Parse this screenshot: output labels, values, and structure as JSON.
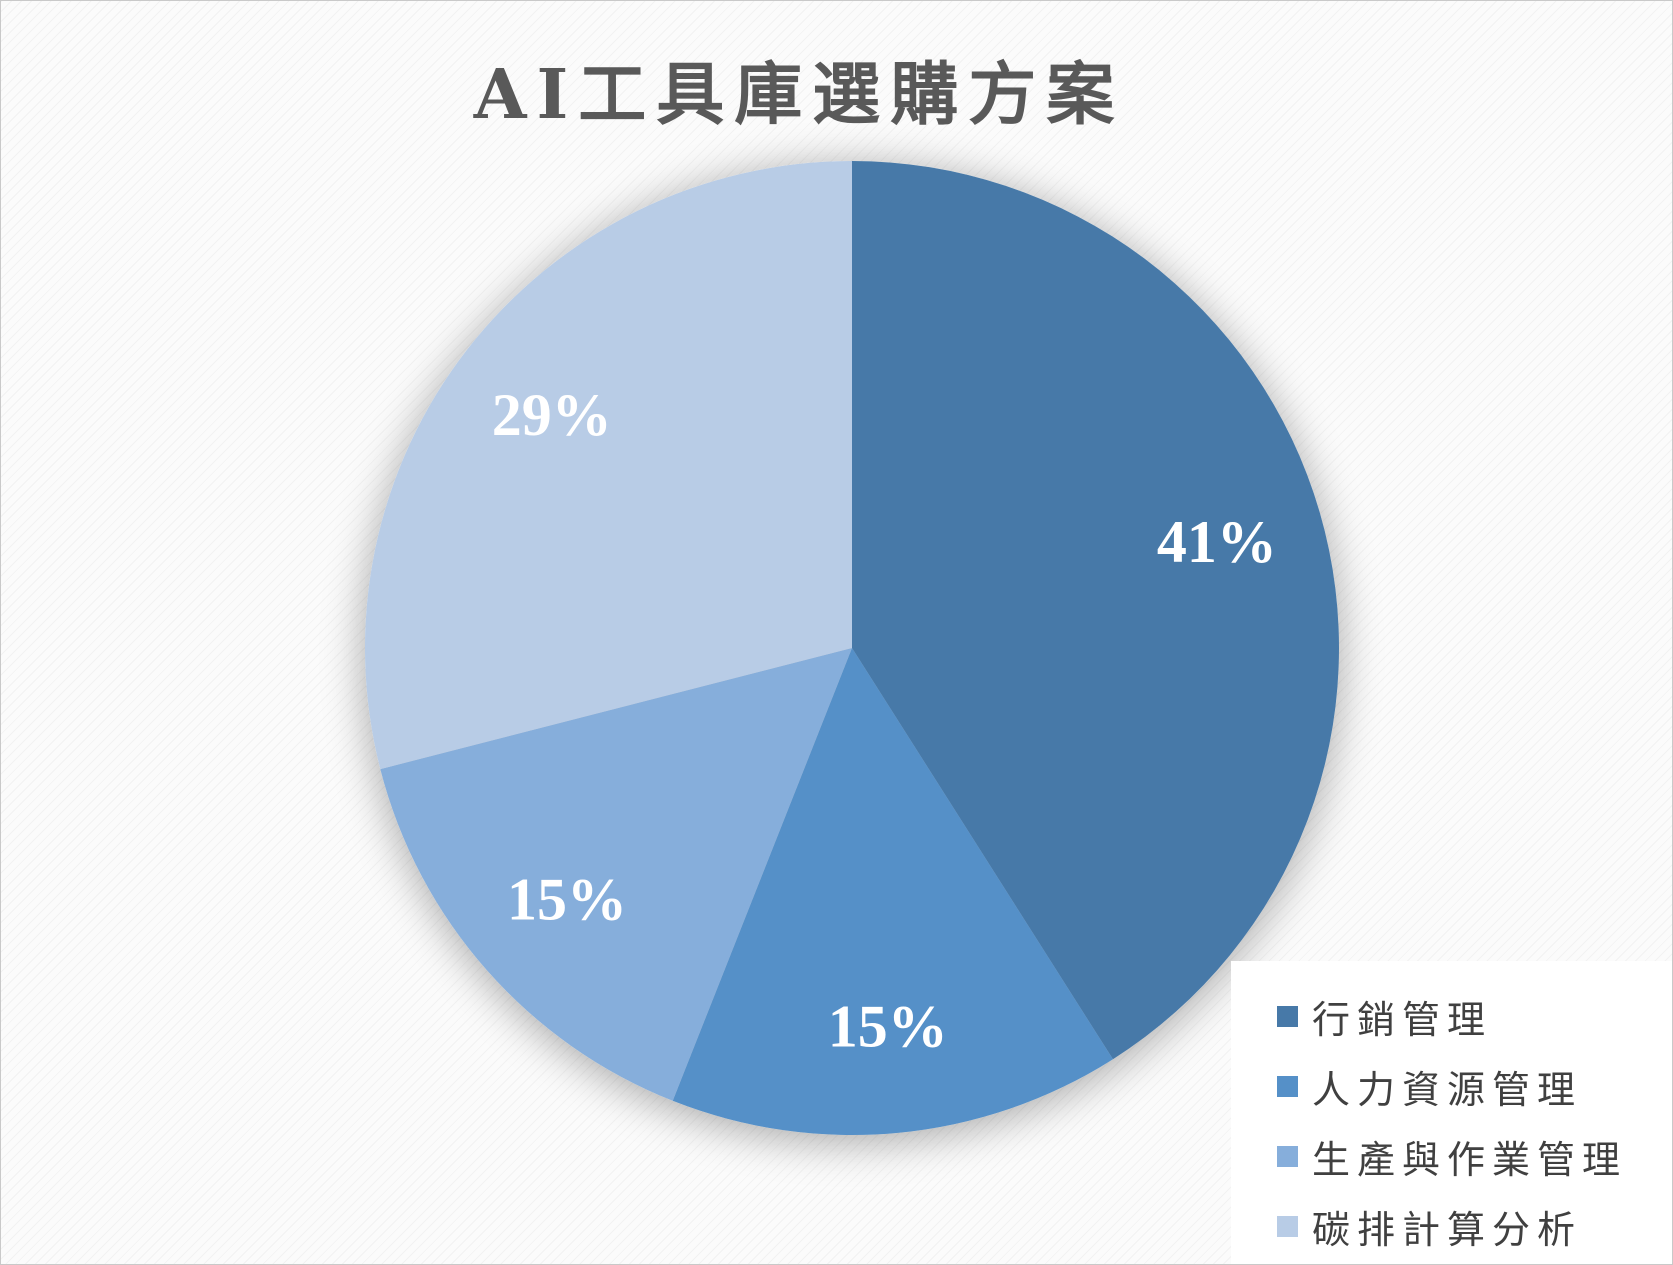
{
  "chart_data": {
    "type": "pie",
    "title": "AI工具庫選購方案",
    "categories": [
      "行銷管理",
      "人力資源管理",
      "生產與作業管理",
      "碳排計算分析"
    ],
    "values": [
      41,
      15,
      15,
      29
    ],
    "labels": [
      "41%",
      "15%",
      "15%",
      "29%"
    ],
    "colors": [
      "#4779a8",
      "#5590c8",
      "#86aedb",
      "#b8cce6"
    ],
    "start_angle": "12 o'clock",
    "direction": "clockwise",
    "legend_position": "bottom-right",
    "data_labels": "percent"
  }
}
